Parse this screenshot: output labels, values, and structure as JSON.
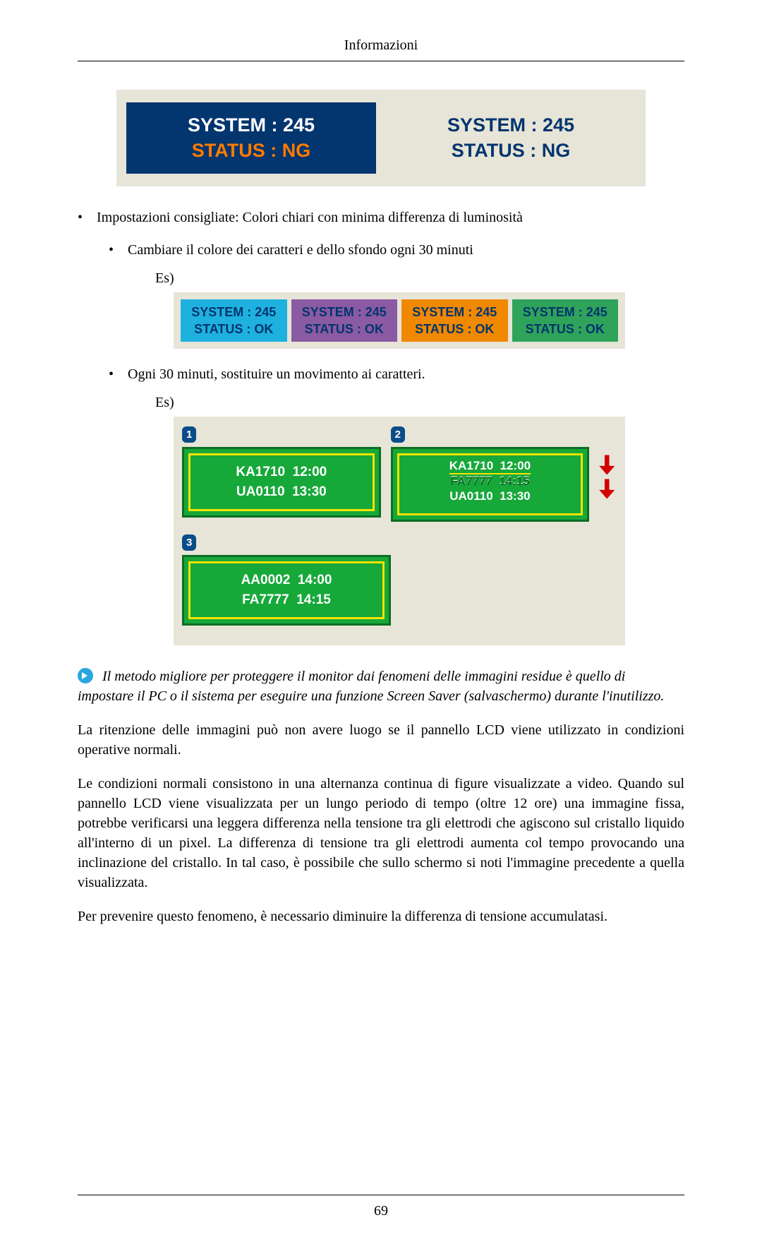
{
  "header": {
    "title": "Informazioni"
  },
  "fig_ng": {
    "background": "#e7e5d8",
    "left": {
      "bg": "#03356e",
      "line1": "SYSTEM : 245",
      "line1_color": "#ffffff",
      "line2": "STATUS : NG",
      "line2_color": "#ff7b00"
    },
    "right": {
      "bg": "#e7e5d8",
      "line1": "SYSTEM : 245",
      "line2": "STATUS : NG",
      "text_color": "#03356e"
    }
  },
  "bullet1": "Impostazioni consigliate: Colori chiari con minima differenza di luminosità",
  "bullet1a": "Cambiare il colore dei caratteri e dello sfondo ogni 30 minuti",
  "es_label": "Es)",
  "fig_colors": {
    "background": "#e7e5d8",
    "text_color": "#03356e",
    "boxes": [
      {
        "bg": "#1eb1df",
        "line1": "SYSTEM : 245",
        "line2": "STATUS : OK"
      },
      {
        "bg": "#8a5aa3",
        "line1": "SYSTEM : 245",
        "line2": "STATUS : OK"
      },
      {
        "bg": "#f08800",
        "line1": "SYSTEM : 245",
        "line2": "STATUS : OK"
      },
      {
        "bg": "#2fa35a",
        "line1": "SYSTEM : 245",
        "line2": "STATUS : OK"
      }
    ]
  },
  "bullet2": "Ogni 30 minuti, sostituire un movimento ai caratteri.",
  "fig_green": {
    "background": "#e7e5d8",
    "panel_bg": "#17a83a",
    "panel_border": "#0c6e22",
    "inner_border": "#f4e400",
    "text_color": "#ffffff",
    "badge_bg": "#0a4c8a",
    "arrow_color": "#d40000",
    "panels": [
      {
        "num": "1",
        "lines": [
          "KA1710  12:00",
          "UA0110  13:30"
        ]
      },
      {
        "num": "2",
        "scroll_lines": [
          "AA0002  14:00",
          "KA1710  12:00",
          "FA7777  14:15",
          "UA0110  13:30"
        ]
      },
      {
        "num": "3",
        "lines": [
          "AA0002  14:00",
          "FA7777  14:15"
        ]
      }
    ]
  },
  "note": "Il metodo migliore per proteggere il monitor dai fenomeni delle immagini residue è quello di impostare il PC o il sistema per eseguire una funzione Screen Saver (salvaschermo) durante l'inutilizzo.",
  "para1": "La ritenzione delle immagini può non avere luogo se il pannello LCD viene utilizzato in condizioni operative normali.",
  "para2": "Le condizioni normali consistono in una alternanza continua di figure visualizzate a video. Quando sul pannello LCD viene visualizzata per un lungo periodo di tempo (oltre 12 ore) una immagine fissa, potrebbe verificarsi una leggera differenza nella tensione tra gli elettrodi che agiscono sul cristallo liquido all'interno di un pixel. La differenza di tensione tra gli elettrodi aumenta col tempo provocando una inclinazione del cristallo. In tal caso, è possibile che sullo schermo si noti l'immagine precedente a quella visualizzata.",
  "para3": "Per prevenire questo fenomeno, è necessario diminuire la differenza di tensione accumulatasi.",
  "footer": {
    "page_number": "69"
  }
}
